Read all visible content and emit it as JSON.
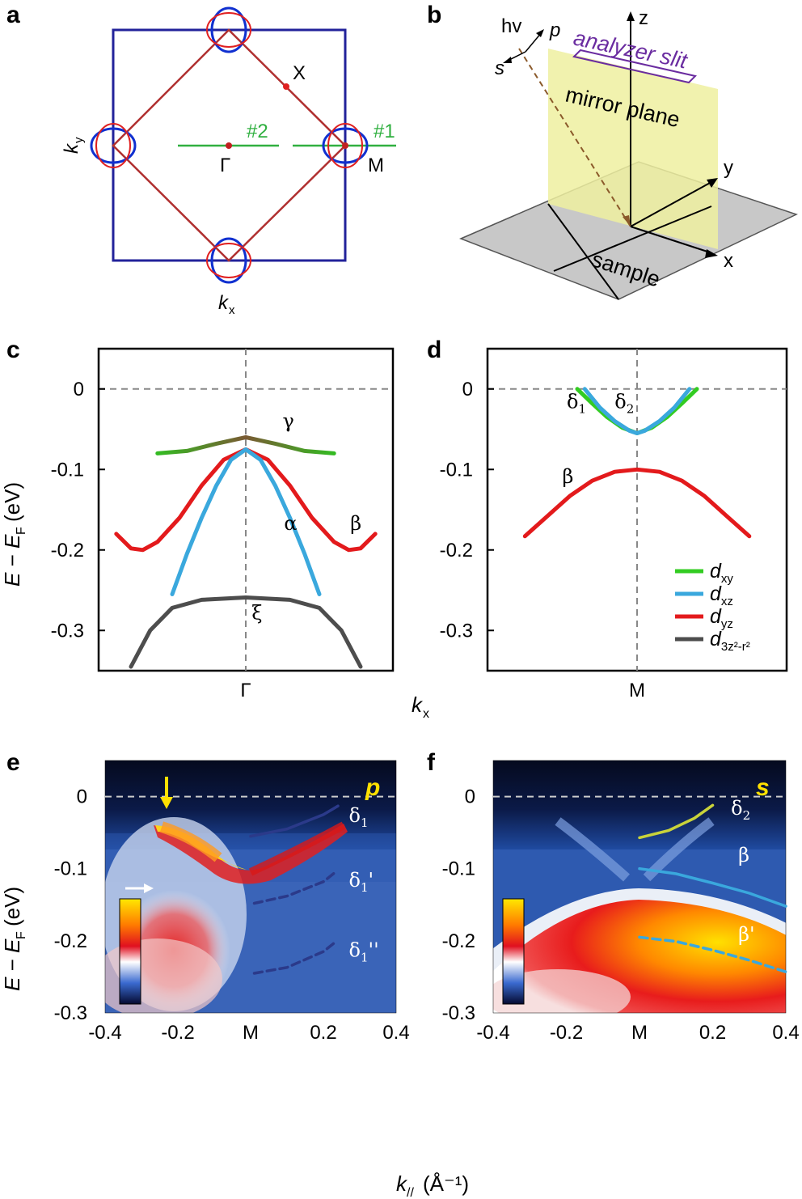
{
  "panels": {
    "a": "a",
    "b": "b",
    "c": "c",
    "d": "d",
    "e": "e",
    "f": "f"
  },
  "panel_a": {
    "points": {
      "X": "X",
      "Gamma": "Γ",
      "M": "M"
    },
    "cuts": {
      "cut1": "#1",
      "cut2": "#2"
    },
    "axes": {
      "ky": "k",
      "ky_sub": "y",
      "kx": "k",
      "kx_sub": "x"
    },
    "colors": {
      "bz": "#22229a",
      "diamond": "#b03030",
      "red_pocket": "#e02020",
      "blue_pocket": "#1030d0",
      "cut": "#30b040"
    }
  },
  "panel_b": {
    "labels": {
      "hv": "hv",
      "p": "p",
      "s": "s",
      "analyzer": "analyzer slit",
      "mirror": "mirror plane",
      "sample": "sample",
      "x": "x",
      "y": "y",
      "z": "z"
    },
    "colors": {
      "analyzer": "#6a2ca0",
      "mirror": "#f2f2a0",
      "sample": "#c8c8c8",
      "beam": "#8b5a2b"
    }
  },
  "chart_data": [
    {
      "id": "c",
      "type": "line",
      "xlabel": "k",
      "xlabel_sub": "x",
      "ylabel": "E − E",
      "ylabel_sub": "F",
      "ylabel_unit": "(eV)",
      "ylim": [
        -0.35,
        0.05
      ],
      "yticks": [
        {
          "v": 0,
          "t": "0"
        },
        {
          "v": -0.1,
          "t": "-0.1"
        },
        {
          "v": -0.2,
          "t": "-0.2"
        },
        {
          "v": -0.3,
          "t": "-0.3"
        }
      ],
      "xticks": [
        {
          "v": 0,
          "t": "Γ"
        }
      ],
      "xlim": [
        -1,
        1
      ],
      "series": [
        {
          "name": "γ",
          "color_from": "#33bb22",
          "color_to": "#7a5a33",
          "points": [
            [
              -0.6,
              -0.08
            ],
            [
              -0.4,
              -0.077
            ],
            [
              -0.2,
              -0.068
            ],
            [
              0,
              -0.06
            ],
            [
              0.2,
              -0.068
            ],
            [
              0.4,
              -0.077
            ],
            [
              0.6,
              -0.08
            ]
          ],
          "label": "γ",
          "label_at": [
            0.25,
            -0.048
          ]
        },
        {
          "name": "β",
          "color": "#e31a1c",
          "points": [
            [
              -0.88,
              -0.18
            ],
            [
              -0.78,
              -0.198
            ],
            [
              -0.7,
              -0.2
            ],
            [
              -0.6,
              -0.19
            ],
            [
              -0.45,
              -0.16
            ],
            [
              -0.3,
              -0.12
            ],
            [
              -0.15,
              -0.088
            ],
            [
              0,
              -0.075
            ],
            [
              0.15,
              -0.088
            ],
            [
              0.3,
              -0.12
            ],
            [
              0.45,
              -0.16
            ],
            [
              0.6,
              -0.19
            ],
            [
              0.7,
              -0.2
            ],
            [
              0.78,
              -0.198
            ],
            [
              0.88,
              -0.18
            ]
          ],
          "label": "β",
          "label_at": [
            0.71,
            -0.175
          ]
        },
        {
          "name": "α",
          "color": "#3aa8dd",
          "points": [
            [
              -0.5,
              -0.255
            ],
            [
              -0.4,
              -0.205
            ],
            [
              -0.3,
              -0.16
            ],
            [
              -0.2,
              -0.12
            ],
            [
              -0.1,
              -0.088
            ],
            [
              0,
              -0.075
            ],
            [
              0.1,
              -0.088
            ],
            [
              0.2,
              -0.12
            ],
            [
              0.3,
              -0.16
            ],
            [
              0.4,
              -0.205
            ],
            [
              0.5,
              -0.255
            ]
          ],
          "label": "α",
          "label_at": [
            0.26,
            -0.175
          ]
        },
        {
          "name": "ξ",
          "color": "#4d4d4d",
          "points": [
            [
              -0.78,
              -0.345
            ],
            [
              -0.65,
              -0.3
            ],
            [
              -0.5,
              -0.272
            ],
            [
              -0.3,
              -0.262
            ],
            [
              0,
              -0.259
            ],
            [
              0.3,
              -0.262
            ],
            [
              0.5,
              -0.272
            ],
            [
              0.65,
              -0.3
            ],
            [
              0.78,
              -0.345
            ]
          ],
          "label": "ξ",
          "label_at": [
            0.04,
            -0.286
          ]
        }
      ]
    },
    {
      "id": "d",
      "type": "line",
      "xlabel": "",
      "ylim": [
        -0.35,
        0.05
      ],
      "yticks": [
        {
          "v": 0,
          "t": "0"
        },
        {
          "v": -0.1,
          "t": "-0.1"
        },
        {
          "v": -0.2,
          "t": "-0.2"
        },
        {
          "v": -0.3,
          "t": "-0.3"
        }
      ],
      "xticks": [
        {
          "v": 0,
          "t": "M"
        }
      ],
      "xlim": [
        -1,
        1
      ],
      "series": [
        {
          "name": "δ1",
          "color": "#33cc22",
          "points": [
            [
              -0.4,
              0.0
            ],
            [
              -0.3,
              -0.018
            ],
            [
              -0.2,
              -0.035
            ],
            [
              -0.1,
              -0.048
            ],
            [
              0,
              -0.055
            ],
            [
              0.1,
              -0.048
            ],
            [
              0.2,
              -0.035
            ],
            [
              0.3,
              -0.018
            ],
            [
              0.4,
              0.0
            ]
          ],
          "label": "δ",
          "label_sub": "1",
          "label_at": [
            -0.47,
            -0.024
          ]
        },
        {
          "name": "δ2",
          "color": "#3aa8dd",
          "points": [
            [
              -0.35,
              0.0
            ],
            [
              -0.25,
              -0.023
            ],
            [
              -0.15,
              -0.04
            ],
            [
              -0.05,
              -0.052
            ],
            [
              0,
              -0.055
            ],
            [
              0.05,
              -0.052
            ],
            [
              0.15,
              -0.04
            ],
            [
              0.25,
              -0.023
            ],
            [
              0.35,
              0.0
            ]
          ],
          "label": "δ",
          "label_sub": "2",
          "label_at": [
            -0.15,
            -0.024
          ]
        },
        {
          "name": "β",
          "color": "#e31a1c",
          "points": [
            [
              -0.75,
              -0.183
            ],
            [
              -0.6,
              -0.158
            ],
            [
              -0.45,
              -0.133
            ],
            [
              -0.3,
              -0.114
            ],
            [
              -0.15,
              -0.103
            ],
            [
              0,
              -0.1
            ],
            [
              0.15,
              -0.103
            ],
            [
              0.3,
              -0.114
            ],
            [
              0.45,
              -0.133
            ],
            [
              0.6,
              -0.158
            ],
            [
              0.75,
              -0.183
            ]
          ],
          "label": "β",
          "label_at": [
            -0.5,
            -0.117
          ]
        }
      ],
      "legend": [
        {
          "label": "d",
          "sub": "xy",
          "color": "#33cc22"
        },
        {
          "label": "d",
          "sub": "xz",
          "color": "#3aa8dd"
        },
        {
          "label": "d",
          "sub": "yz",
          "color": "#e31a1c"
        },
        {
          "label": "d",
          "sub": "3z²-r²",
          "color": "#4d4d4d"
        }
      ]
    },
    {
      "id": "e",
      "type": "heatmap",
      "xlabel": "k",
      "xlabel_sub": "//",
      "xlabel_unit": "(Å⁻¹)",
      "ylabel": "E − E",
      "ylabel_sub": "F",
      "ylabel_unit": "(eV)",
      "xlim": [
        -0.4,
        0.4
      ],
      "ylim": [
        -0.3,
        0.05
      ],
      "xticks": [
        {
          "v": -0.4,
          "t": "-0.4"
        },
        {
          "v": -0.2,
          "t": "-0.2"
        },
        {
          "v": 0,
          "t": "M"
        },
        {
          "v": 0.2,
          "t": "0.2"
        },
        {
          "v": 0.4,
          "t": "0.4"
        }
      ],
      "yticks": [
        {
          "v": 0,
          "t": "0"
        },
        {
          "v": -0.1,
          "t": "-0.1"
        },
        {
          "v": -0.2,
          "t": "-0.2"
        },
        {
          "v": -0.3,
          "t": "-0.3"
        }
      ],
      "polarization": "p",
      "annotations": [
        {
          "label": "δ",
          "sub": "1",
          "prime": "",
          "at": [
            0.27,
            -0.035
          ]
        },
        {
          "label": "δ",
          "sub": "1",
          "prime": "'",
          "at": [
            0.27,
            -0.125
          ]
        },
        {
          "label": "δ",
          "sub": "1",
          "prime": "''",
          "at": [
            0.27,
            -0.222
          ]
        }
      ],
      "overlays": [
        {
          "color": "#2b3a8a",
          "dashed": false,
          "points": [
            [
              0,
              -0.055
            ],
            [
              0.1,
              -0.045
            ],
            [
              0.2,
              -0.025
            ],
            [
              0.24,
              -0.013
            ]
          ]
        },
        {
          "color": "#2b3a8a",
          "dashed": true,
          "points": [
            [
              0.01,
              -0.148
            ],
            [
              0.1,
              -0.138
            ],
            [
              0.2,
              -0.118
            ],
            [
              0.23,
              -0.106
            ]
          ]
        },
        {
          "color": "#2b3a8a",
          "dashed": true,
          "points": [
            [
              0.01,
              -0.245
            ],
            [
              0.1,
              -0.237
            ],
            [
              0.2,
              -0.215
            ],
            [
              0.23,
              -0.203
            ]
          ]
        }
      ]
    },
    {
      "id": "f",
      "type": "heatmap",
      "xlabel": "k",
      "xlabel_sub": "//",
      "xlabel_unit": "(Å⁻¹)",
      "xlim": [
        -0.4,
        0.4
      ],
      "ylim": [
        -0.3,
        0.05
      ],
      "xticks": [
        {
          "v": -0.4,
          "t": "-0.4"
        },
        {
          "v": -0.2,
          "t": "-0.2"
        },
        {
          "v": 0,
          "t": "M"
        },
        {
          "v": 0.2,
          "t": "0.2"
        },
        {
          "v": 0.4,
          "t": "0.4"
        }
      ],
      "yticks": [
        {
          "v": 0,
          "t": "0"
        },
        {
          "v": -0.1,
          "t": "-0.1"
        },
        {
          "v": -0.2,
          "t": "-0.2"
        },
        {
          "v": -0.3,
          "t": "-0.3"
        }
      ],
      "polarization": "s",
      "annotations": [
        {
          "label": "δ",
          "sub": "2",
          "prime": "",
          "at": [
            0.25,
            -0.025
          ]
        },
        {
          "label": "β",
          "sub": "",
          "prime": "",
          "at": [
            0.27,
            -0.09
          ]
        },
        {
          "label": "β",
          "sub": "",
          "prime": "'",
          "at": [
            0.27,
            -0.2
          ]
        }
      ],
      "overlays": [
        {
          "color": "#c9d33a",
          "dashed": false,
          "points": [
            [
              0,
              -0.057
            ],
            [
              0.08,
              -0.047
            ],
            [
              0.15,
              -0.03
            ],
            [
              0.2,
              -0.012
            ]
          ]
        },
        {
          "color": "#3aa8dd",
          "dashed": false,
          "points": [
            [
              0,
              -0.1
            ],
            [
              0.1,
              -0.107
            ],
            [
              0.2,
              -0.12
            ],
            [
              0.3,
              -0.134
            ],
            [
              0.4,
              -0.152
            ]
          ]
        },
        {
          "color": "#3aa8dd",
          "dashed": true,
          "points": [
            [
              0,
              -0.195
            ],
            [
              0.1,
              -0.201
            ],
            [
              0.2,
              -0.213
            ],
            [
              0.3,
              -0.227
            ],
            [
              0.4,
              -0.243
            ]
          ]
        }
      ]
    }
  ]
}
